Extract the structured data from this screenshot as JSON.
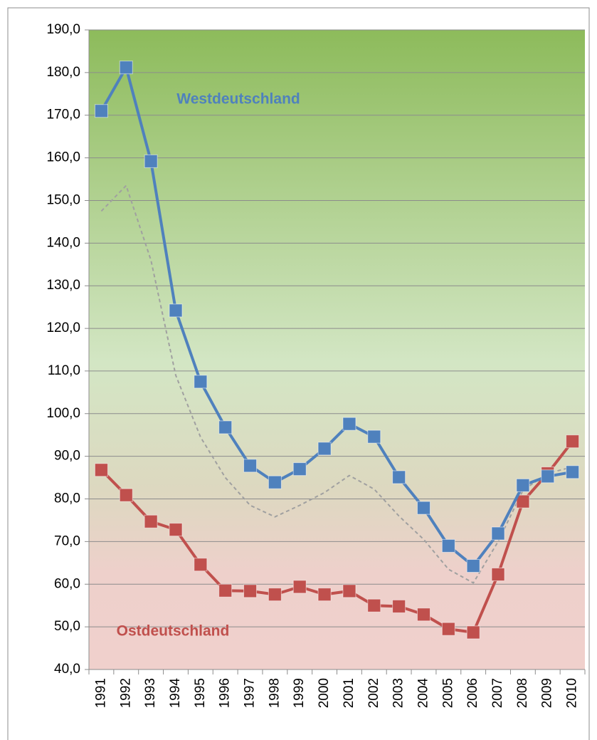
{
  "chart_data": {
    "type": "line",
    "categories": [
      "1991",
      "1992",
      "1993",
      "1994",
      "1995",
      "1996",
      "1997",
      "1998",
      "1999",
      "2000",
      "2001",
      "2002",
      "2003",
      "2004",
      "2005",
      "2006",
      "2007",
      "2008",
      "2009",
      "2010"
    ],
    "series": [
      {
        "name": "Westdeutschland",
        "color": "#4f81bd",
        "style": "solid",
        "marker": true,
        "values": [
          171.0,
          181.2,
          159.2,
          124.2,
          107.5,
          96.8,
          87.8,
          83.9,
          87.0,
          91.8,
          97.6,
          94.6,
          85.1,
          77.9,
          69.0,
          64.3,
          71.9,
          83.2,
          85.3,
          86.3
        ]
      },
      {
        "name": "Ostdeutschland",
        "color": "#c0504d",
        "style": "solid",
        "marker": true,
        "values": [
          86.8,
          80.9,
          74.7,
          72.8,
          64.6,
          58.5,
          58.4,
          57.6,
          59.4,
          57.6,
          58.4,
          55.0,
          54.8,
          52.9,
          49.5,
          48.7,
          62.3,
          79.4,
          86.0,
          93.5
        ]
      },
      {
        "color": "#a0a0a0",
        "style": "dashed",
        "marker": false,
        "values": [
          147.5,
          153.5,
          136.0,
          109.0,
          94.5,
          85.0,
          78.5,
          75.8,
          78.5,
          81.5,
          85.5,
          82.3,
          76.0,
          70.5,
          63.5,
          60.3,
          70.0,
          82.0,
          86.0,
          87.5
        ]
      }
    ],
    "ylim": [
      40,
      190
    ],
    "yticks": [
      {
        "value": 40,
        "label": "40,0"
      },
      {
        "value": 50,
        "label": "50,0"
      },
      {
        "value": 60,
        "label": "60,0"
      },
      {
        "value": 70,
        "label": "70,0"
      },
      {
        "value": 80,
        "label": "80,0"
      },
      {
        "value": 90,
        "label": "90,0"
      },
      {
        "value": 100,
        "label": "100,0"
      },
      {
        "value": 110,
        "label": "110,0"
      },
      {
        "value": 120,
        "label": "120,0"
      },
      {
        "value": 130,
        "label": "130,0"
      },
      {
        "value": 140,
        "label": "140,0"
      },
      {
        "value": 150,
        "label": "150,0"
      },
      {
        "value": 160,
        "label": "160,0"
      },
      {
        "value": 170,
        "label": "170,0"
      },
      {
        "value": 180,
        "label": "180,0"
      },
      {
        "value": 190,
        "label": "190,0"
      }
    ],
    "grid": true
  }
}
